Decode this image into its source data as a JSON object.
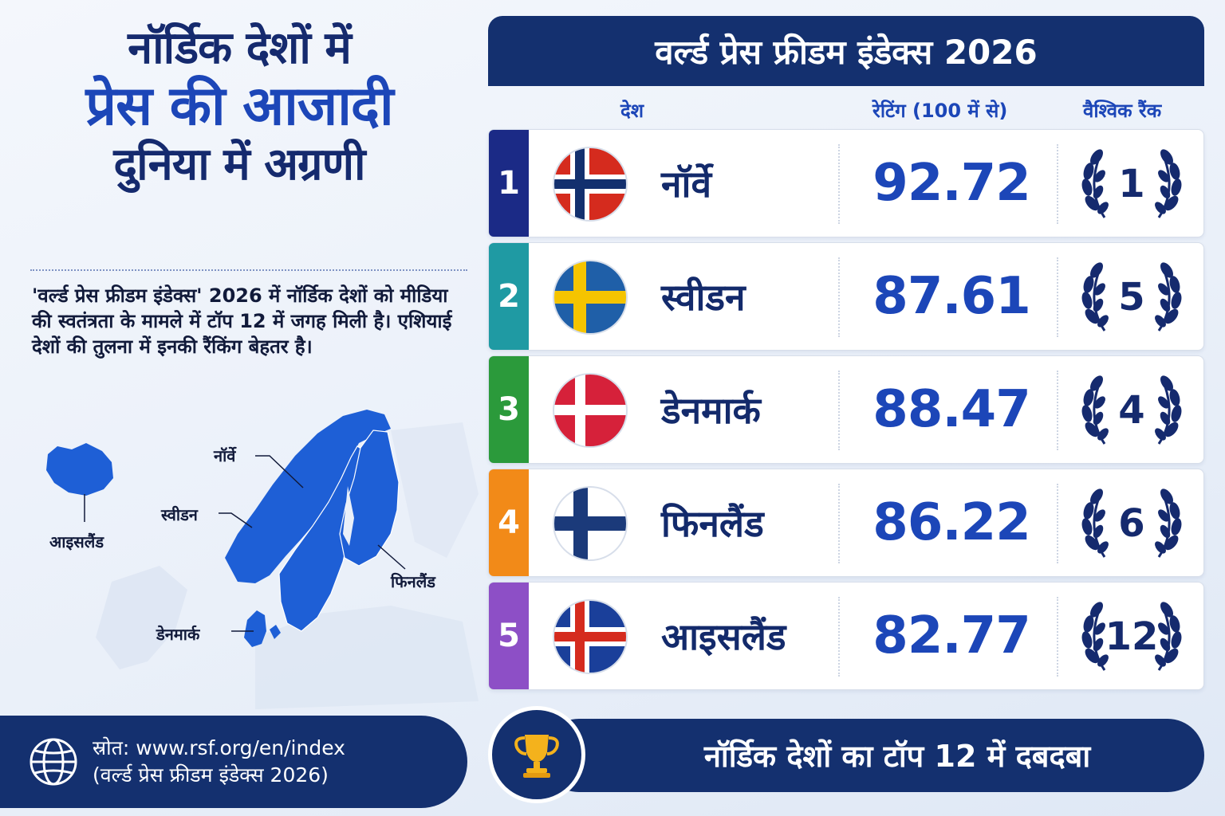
{
  "title": {
    "line1": "नॉर्डिक देशों में",
    "line2": "प्रेस की आजादी",
    "line3": "दुनिया में अग्रणी"
  },
  "description": "'वर्ल्ड प्रेस फ्रीडम इंडेक्स' 2026 में नॉर्डिक देशों को मीडिया की स्वतंत्रता के मामले में टॉप 12 में जगह मिली है। एशियाई देशों की तुलना में इनकी रैंकिंग बेहतर है।",
  "map_labels": {
    "norway": "नॉर्वे",
    "sweden": "स्वीडन",
    "iceland": "आइसलैंड",
    "finland": "फिनलैंड",
    "denmark": "डेनमार्क"
  },
  "source": {
    "line1": "स्रोत: www.rsf.org/en/index",
    "line2": "(वर्ल्ड प्रेस फ्रीडम इंडेक्स 2026)",
    "icon": "globe-icon"
  },
  "table": {
    "header": "वर्ल्ड प्रेस फ्रीडम इंडेक्स 2026",
    "col_country": "देश",
    "col_rating": "रेटिंग (100 में से)",
    "col_rank": "वैश्विक रैंक",
    "rows": [
      {
        "num": "1",
        "country": "नॉर्वे",
        "rating": "92.72",
        "rank": "1",
        "flag": "norway-flag",
        "color": "#1b2a86"
      },
      {
        "num": "2",
        "country": "स्वीडन",
        "rating": "87.61",
        "rank": "5",
        "flag": "sweden-flag",
        "color": "#1f9aa3"
      },
      {
        "num": "3",
        "country": "डेनमार्क",
        "rating": "88.47",
        "rank": "4",
        "flag": "denmark-flag",
        "color": "#2b9a3b"
      },
      {
        "num": "4",
        "country": "फिनलैंड",
        "rating": "86.22",
        "rank": "6",
        "flag": "finland-flag",
        "color": "#f28a18"
      },
      {
        "num": "5",
        "country": "आइसलैंड",
        "rating": "82.77",
        "rank": "12",
        "flag": "iceland-flag",
        "color": "#8d4fc6"
      }
    ]
  },
  "footer": {
    "text": "नॉर्डिक देशों का टॉप 12 में दबदबा",
    "icon": "trophy-icon"
  },
  "colors": {
    "navy": "#14306f",
    "accent_blue": "#1c46b8",
    "map_blue": "#1e5fd6"
  }
}
